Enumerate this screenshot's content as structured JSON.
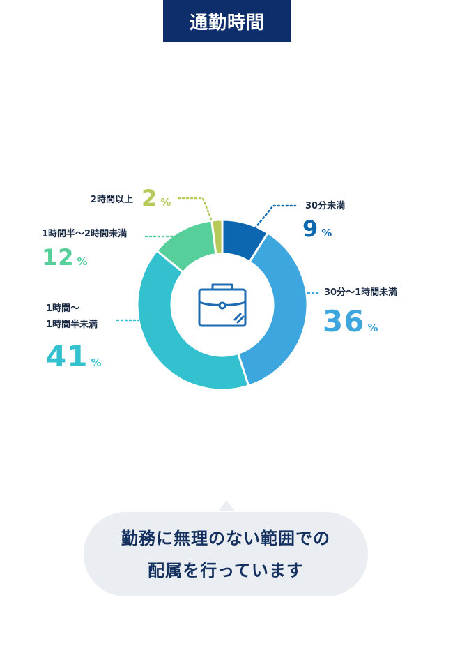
{
  "title": "通勤時間",
  "chart_data": {
    "type": "donut",
    "unit": "%",
    "segments": [
      {
        "label": "30分未満",
        "label_lines": [
          "30分未満"
        ],
        "value": 9,
        "color": "#0c67b0"
      },
      {
        "label": "30分〜1時間未満",
        "label_lines": [
          "30分〜1時間未満"
        ],
        "value": 36,
        "color": "#3ea6df"
      },
      {
        "label": "1時間〜1時間半未満",
        "label_lines": [
          "1時間〜",
          "1時間半未満"
        ],
        "value": 41,
        "color": "#33c0cf"
      },
      {
        "label": "1時間半〜2時間未満",
        "label_lines": [
          "1時間半〜2時間未満"
        ],
        "value": 12,
        "color": "#56cf9b"
      },
      {
        "label": "2時間以上",
        "label_lines": [
          "2時間以上"
        ],
        "value": 2,
        "color": "#b8c95c"
      }
    ],
    "center_icon": "briefcase-icon"
  },
  "message": {
    "lines": [
      "勤務に無理のない範囲での",
      "配属を行っています"
    ]
  }
}
